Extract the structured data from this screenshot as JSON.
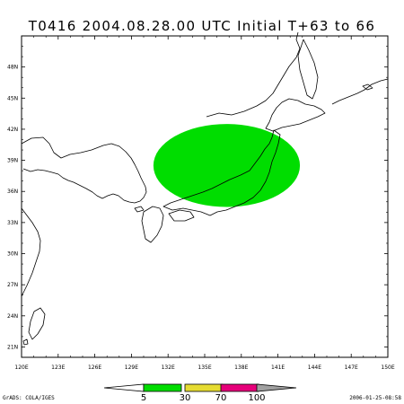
{
  "title": "T0416 2004.08.28.00 UTC Initial T+63 to 66",
  "map": {
    "lat_labels": [
      "48N",
      "45N",
      "42N",
      "39N",
      "36N",
      "33N",
      "30N",
      "27N",
      "24N",
      "21N"
    ],
    "lat_values": [
      48,
      45,
      42,
      39,
      36,
      33,
      30,
      27,
      24,
      21
    ],
    "lon_labels": [
      "120E",
      "123E",
      "126E",
      "129E",
      "132E",
      "135E",
      "138E",
      "141E",
      "144E",
      "147E",
      "150E"
    ],
    "lon_values": [
      120,
      123,
      126,
      129,
      132,
      135,
      138,
      141,
      144,
      147,
      150
    ],
    "lon_range": [
      120,
      150
    ],
    "lat_range": [
      20,
      51
    ],
    "probability_area": {
      "center_lon": 136.8,
      "center_lat": 38.5,
      "radius_lon_deg": 6.0,
      "radius_lat_deg": 4.0,
      "color": "#00dd00",
      "band": "5-30"
    }
  },
  "colorbar": {
    "labels": [
      "5",
      "30",
      "70",
      "100"
    ],
    "colors": [
      "#00dd00",
      "#e6dc32",
      "#e6007a",
      "#a0a0a0"
    ]
  },
  "footer": {
    "left": "GrADS: COLA/IGES",
    "right": "2006-01-25-08:58"
  },
  "colors": {
    "coast": "#000000",
    "frame": "#000000",
    "background": "#ffffff"
  }
}
